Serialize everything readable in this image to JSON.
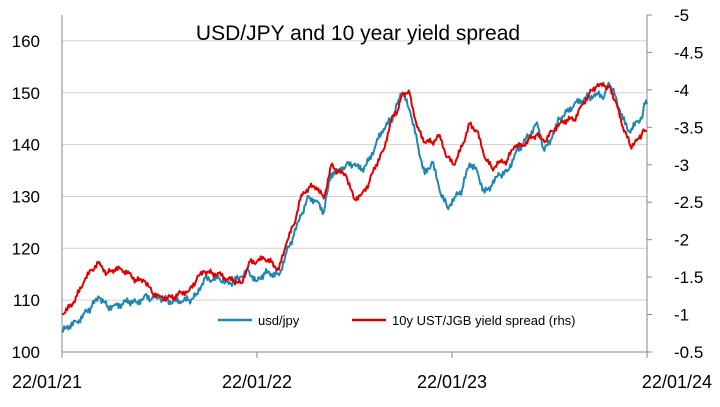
{
  "chart_data": {
    "type": "line",
    "title": "USD/JPY and 10 year yield spread",
    "x_dates": [
      "22/01/21",
      "22/01/22",
      "22/01/23",
      "22/01/24"
    ],
    "y_left": {
      "ylim": [
        100,
        165
      ],
      "ticks": [
        "100",
        "110",
        "120",
        "130",
        "140",
        "150",
        "160"
      ]
    },
    "y_right": {
      "ylim": [
        -0.5,
        -5
      ],
      "ticks": [
        "-0.5",
        "-1",
        "-1.5",
        "-2",
        "-2.5",
        "-3",
        "-3.5",
        "-4",
        "-4.5",
        "-5"
      ]
    },
    "grid": true,
    "legend_position": "bottom-center",
    "series": [
      {
        "name": "usd/jpy",
        "axis": "left",
        "color": "#1f86b4",
        "points": [
          [
            "2021-01-22",
            103.8
          ],
          [
            "2021-02-05",
            105.0
          ],
          [
            "2021-02-19",
            105.8
          ],
          [
            "2021-03-05",
            107.5
          ],
          [
            "2021-03-19",
            108.8
          ],
          [
            "2021-04-02",
            110.5
          ],
          [
            "2021-04-16",
            108.8
          ],
          [
            "2021-04-30",
            109.0
          ],
          [
            "2021-05-14",
            109.2
          ],
          [
            "2021-05-28",
            109.8
          ],
          [
            "2021-06-11",
            109.6
          ],
          [
            "2021-06-25",
            110.8
          ],
          [
            "2021-07-09",
            110.2
          ],
          [
            "2021-07-23",
            110.4
          ],
          [
            "2021-08-06",
            110.0
          ],
          [
            "2021-08-20",
            109.8
          ],
          [
            "2021-09-03",
            109.7
          ],
          [
            "2021-09-17",
            110.0
          ],
          [
            "2021-10-01",
            111.2
          ],
          [
            "2021-10-15",
            114.2
          ],
          [
            "2021-10-29",
            113.8
          ],
          [
            "2021-11-12",
            114.2
          ],
          [
            "2021-11-26",
            113.5
          ],
          [
            "2021-12-10",
            113.5
          ],
          [
            "2021-12-24",
            114.5
          ],
          [
            "2022-01-07",
            115.6
          ],
          [
            "2022-01-21",
            113.7
          ],
          [
            "2022-02-04",
            115.2
          ],
          [
            "2022-02-18",
            115.0
          ],
          [
            "2022-03-04",
            114.8
          ],
          [
            "2022-03-18",
            119.2
          ],
          [
            "2022-04-01",
            122.5
          ],
          [
            "2022-04-15",
            126.4
          ],
          [
            "2022-04-29",
            130.0
          ],
          [
            "2022-05-13",
            129.2
          ],
          [
            "2022-05-27",
            127.0
          ],
          [
            "2022-06-10",
            134.4
          ],
          [
            "2022-06-24",
            135.2
          ],
          [
            "2022-07-08",
            136.1
          ],
          [
            "2022-07-22",
            136.1
          ],
          [
            "2022-08-05",
            135.0
          ],
          [
            "2022-08-19",
            136.9
          ],
          [
            "2022-09-02",
            140.2
          ],
          [
            "2022-09-16",
            143.0
          ],
          [
            "2022-09-30",
            144.7
          ],
          [
            "2022-10-14",
            148.7
          ],
          [
            "2022-10-21",
            150.1
          ],
          [
            "2022-11-04",
            146.6
          ],
          [
            "2022-11-18",
            140.4
          ],
          [
            "2022-12-02",
            134.3
          ],
          [
            "2022-12-16",
            136.7
          ],
          [
            "2022-12-30",
            131.1
          ],
          [
            "2023-01-13",
            127.9
          ],
          [
            "2023-01-27",
            129.9
          ],
          [
            "2023-02-10",
            131.4
          ],
          [
            "2023-02-24",
            136.4
          ],
          [
            "2023-03-10",
            134.9
          ],
          [
            "2023-03-24",
            130.7
          ],
          [
            "2023-04-07",
            132.2
          ],
          [
            "2023-04-21",
            134.2
          ],
          [
            "2023-05-05",
            134.8
          ],
          [
            "2023-05-19",
            138.0
          ],
          [
            "2023-06-02",
            139.9
          ],
          [
            "2023-06-16",
            141.8
          ],
          [
            "2023-06-30",
            144.3
          ],
          [
            "2023-07-14",
            138.8
          ],
          [
            "2023-07-28",
            141.2
          ],
          [
            "2023-08-11",
            144.9
          ],
          [
            "2023-08-25",
            146.4
          ],
          [
            "2023-09-08",
            147.8
          ],
          [
            "2023-09-22",
            148.4
          ],
          [
            "2023-10-06",
            149.3
          ],
          [
            "2023-10-20",
            149.9
          ],
          [
            "2023-11-03",
            149.4
          ],
          [
            "2023-11-13",
            151.6
          ],
          [
            "2023-11-24",
            149.4
          ],
          [
            "2023-12-08",
            144.9
          ],
          [
            "2023-12-22",
            142.3
          ],
          [
            "2024-01-05",
            144.6
          ],
          [
            "2024-01-12",
            145.0
          ],
          [
            "2024-01-17",
            148.0
          ],
          [
            "2024-01-22",
            147.8
          ]
        ]
      },
      {
        "name": "10y UST/JGB yield spread (rhs)",
        "axis": "right",
        "color": "#e00000",
        "points": [
          [
            "2021-01-22",
            -1.0
          ],
          [
            "2021-02-05",
            -1.1
          ],
          [
            "2021-02-19",
            -1.25
          ],
          [
            "2021-03-05",
            -1.45
          ],
          [
            "2021-03-19",
            -1.6
          ],
          [
            "2021-04-02",
            -1.7
          ],
          [
            "2021-04-16",
            -1.55
          ],
          [
            "2021-04-30",
            -1.6
          ],
          [
            "2021-05-14",
            -1.6
          ],
          [
            "2021-05-28",
            -1.55
          ],
          [
            "2021-06-11",
            -1.45
          ],
          [
            "2021-06-25",
            -1.45
          ],
          [
            "2021-07-09",
            -1.3
          ],
          [
            "2021-07-23",
            -1.25
          ],
          [
            "2021-08-06",
            -1.22
          ],
          [
            "2021-08-20",
            -1.23
          ],
          [
            "2021-09-03",
            -1.3
          ],
          [
            "2021-09-17",
            -1.32
          ],
          [
            "2021-10-01",
            -1.47
          ],
          [
            "2021-10-15",
            -1.57
          ],
          [
            "2021-10-29",
            -1.55
          ],
          [
            "2021-11-12",
            -1.55
          ],
          [
            "2021-11-26",
            -1.47
          ],
          [
            "2021-12-10",
            -1.45
          ],
          [
            "2021-12-24",
            -1.42
          ],
          [
            "2022-01-07",
            -1.7
          ],
          [
            "2022-01-21",
            -1.7
          ],
          [
            "2022-02-04",
            -1.75
          ],
          [
            "2022-02-18",
            -1.7
          ],
          [
            "2022-03-04",
            -1.6
          ],
          [
            "2022-03-18",
            -1.95
          ],
          [
            "2022-04-01",
            -2.2
          ],
          [
            "2022-04-15",
            -2.6
          ],
          [
            "2022-04-29",
            -2.7
          ],
          [
            "2022-05-13",
            -2.7
          ],
          [
            "2022-05-27",
            -2.55
          ],
          [
            "2022-06-10",
            -3.0
          ],
          [
            "2022-06-24",
            -2.9
          ],
          [
            "2022-07-08",
            -2.85
          ],
          [
            "2022-07-22",
            -2.55
          ],
          [
            "2022-08-05",
            -2.6
          ],
          [
            "2022-08-19",
            -2.75
          ],
          [
            "2022-09-02",
            -3.0
          ],
          [
            "2022-09-16",
            -3.2
          ],
          [
            "2022-09-30",
            -3.6
          ],
          [
            "2022-10-14",
            -3.75
          ],
          [
            "2022-10-21",
            -3.95
          ],
          [
            "2022-11-04",
            -3.95
          ],
          [
            "2022-11-18",
            -3.5
          ],
          [
            "2022-12-02",
            -3.3
          ],
          [
            "2022-12-16",
            -3.3
          ],
          [
            "2022-12-30",
            -3.4
          ],
          [
            "2023-01-13",
            -3.1
          ],
          [
            "2023-01-27",
            -3.0
          ],
          [
            "2023-02-10",
            -3.25
          ],
          [
            "2023-02-24",
            -3.55
          ],
          [
            "2023-03-10",
            -3.45
          ],
          [
            "2023-03-24",
            -3.1
          ],
          [
            "2023-04-07",
            -2.95
          ],
          [
            "2023-04-21",
            -3.05
          ],
          [
            "2023-05-05",
            -3.05
          ],
          [
            "2023-05-19",
            -3.25
          ],
          [
            "2023-06-02",
            -3.25
          ],
          [
            "2023-06-16",
            -3.35
          ],
          [
            "2023-06-30",
            -3.4
          ],
          [
            "2023-07-14",
            -3.3
          ],
          [
            "2023-07-28",
            -3.45
          ],
          [
            "2023-08-11",
            -3.55
          ],
          [
            "2023-08-25",
            -3.6
          ],
          [
            "2023-09-08",
            -3.6
          ],
          [
            "2023-09-22",
            -3.8
          ],
          [
            "2023-10-06",
            -3.95
          ],
          [
            "2023-10-20",
            -4.05
          ],
          [
            "2023-11-03",
            -4.05
          ],
          [
            "2023-11-13",
            -4.05
          ],
          [
            "2023-11-24",
            -3.85
          ],
          [
            "2023-12-08",
            -3.5
          ],
          [
            "2023-12-22",
            -3.25
          ],
          [
            "2024-01-05",
            -3.35
          ],
          [
            "2024-01-12",
            -3.4
          ],
          [
            "2024-01-17",
            -3.45
          ],
          [
            "2024-01-22",
            -3.45
          ]
        ]
      }
    ]
  }
}
